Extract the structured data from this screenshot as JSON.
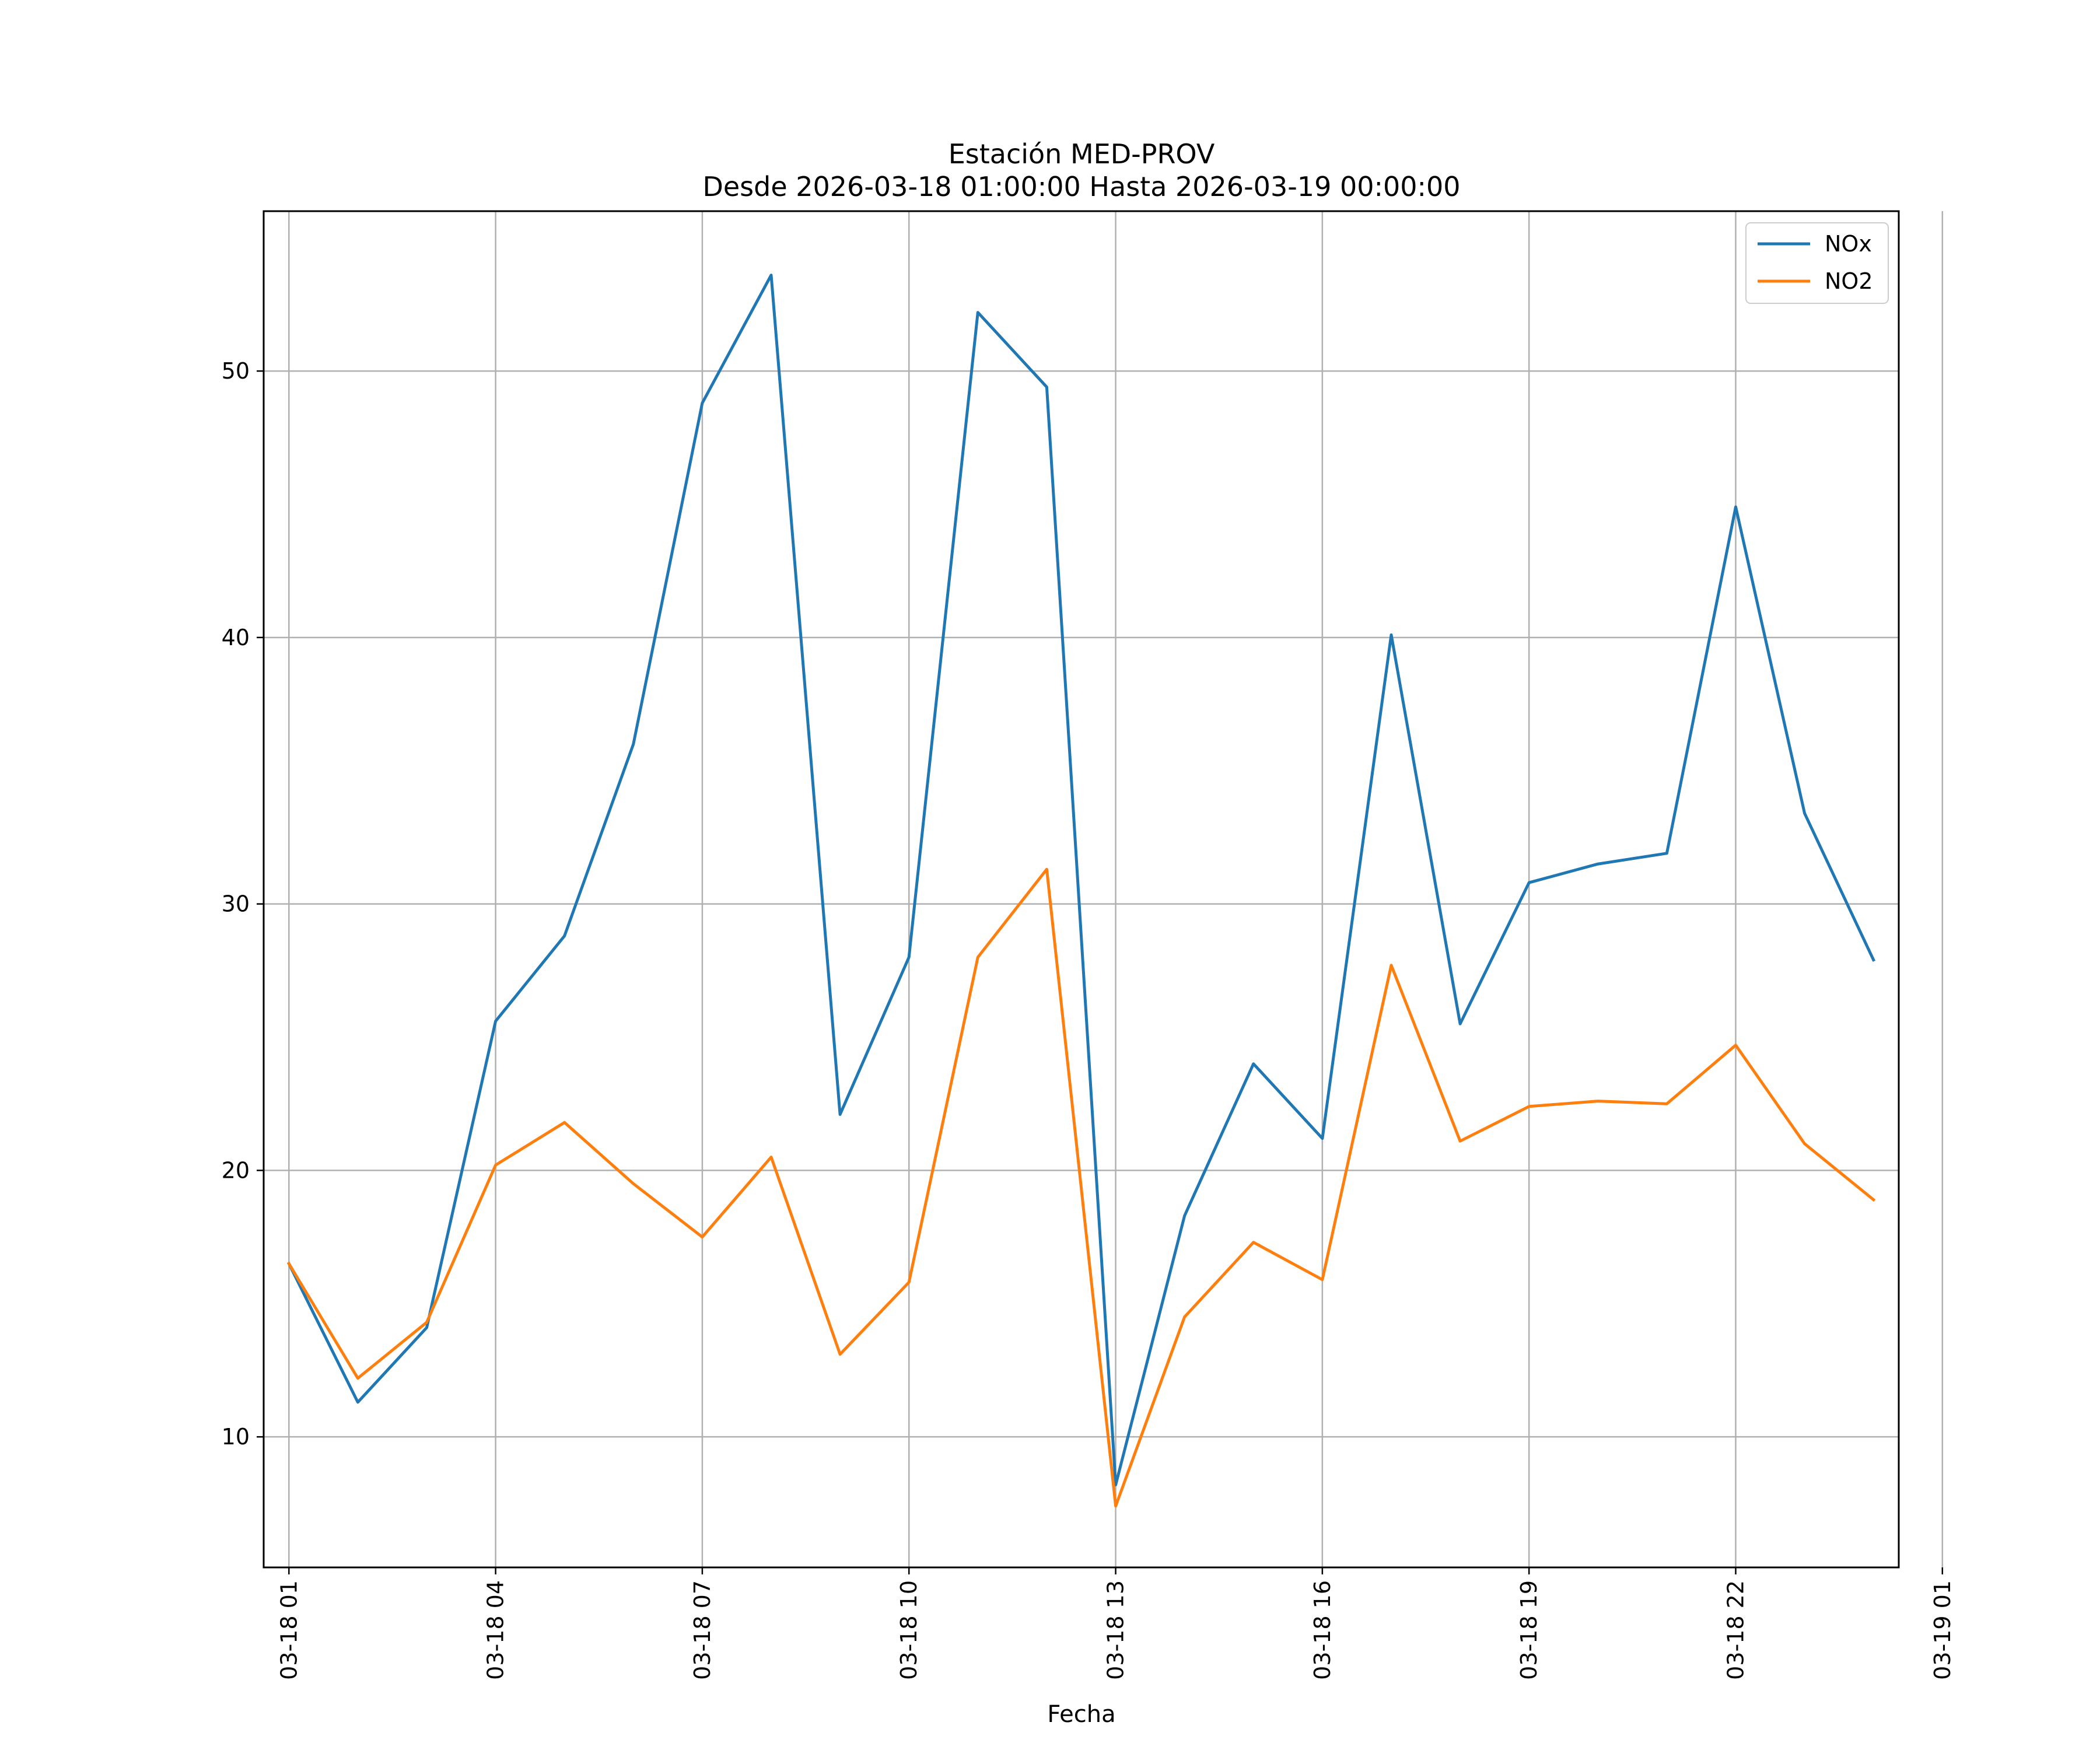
{
  "chart_data": {
    "type": "line",
    "title": "Estación MED-PROV",
    "subtitle": "Desde 2026-03-18 01:00:00 Hasta 2026-03-19 00:00:00",
    "xlabel": "Fecha",
    "ylabel": "",
    "grid": true,
    "legend_position": "top-right",
    "xlim": [
      "2026-03-18 00:38",
      "2026-03-19 00:22"
    ],
    "ylim": [
      5.1,
      56
    ],
    "x": [
      "2026-03-18 01:00",
      "2026-03-18 02:00",
      "2026-03-18 03:00",
      "2026-03-18 04:00",
      "2026-03-18 05:00",
      "2026-03-18 06:00",
      "2026-03-18 07:00",
      "2026-03-18 08:00",
      "2026-03-18 09:00",
      "2026-03-18 10:00",
      "2026-03-18 11:00",
      "2026-03-18 12:00",
      "2026-03-18 13:00",
      "2026-03-18 14:00",
      "2026-03-18 15:00",
      "2026-03-18 16:00",
      "2026-03-18 17:00",
      "2026-03-18 18:00",
      "2026-03-18 19:00",
      "2026-03-18 20:00",
      "2026-03-18 21:00",
      "2026-03-18 22:00",
      "2026-03-18 23:00",
      "2026-03-19 00:00"
    ],
    "x_ticks": [
      {
        "label": "03-18 01",
        "at": "2026-03-18 01:00"
      },
      {
        "label": "03-18 04",
        "at": "2026-03-18 04:00"
      },
      {
        "label": "03-18 07",
        "at": "2026-03-18 07:00"
      },
      {
        "label": "03-18 10",
        "at": "2026-03-18 10:00"
      },
      {
        "label": "03-18 13",
        "at": "2026-03-18 13:00"
      },
      {
        "label": "03-18 16",
        "at": "2026-03-18 16:00"
      },
      {
        "label": "03-18 19",
        "at": "2026-03-18 19:00"
      },
      {
        "label": "03-18 22",
        "at": "2026-03-18 22:00"
      },
      {
        "label": "03-19 01",
        "at": "2026-03-19 01:00"
      }
    ],
    "y_ticks": [
      10,
      20,
      30,
      40,
      50
    ],
    "series": [
      {
        "name": "NOx",
        "color": "#1f77b4",
        "values": [
          16.5,
          11.3,
          14.1,
          25.6,
          28.8,
          36.0,
          48.8,
          53.6,
          22.1,
          28.0,
          52.2,
          49.4,
          8.2,
          18.3,
          24.0,
          21.2,
          40.1,
          25.5,
          30.8,
          31.5,
          31.9,
          44.9,
          33.4,
          27.9
        ]
      },
      {
        "name": "NO2",
        "color": "#ff7f0e",
        "values": [
          16.5,
          12.2,
          14.3,
          20.2,
          21.8,
          19.5,
          17.5,
          20.5,
          13.1,
          15.8,
          28.0,
          31.3,
          7.4,
          14.5,
          17.3,
          15.9,
          27.7,
          21.1,
          22.4,
          22.6,
          22.5,
          24.7,
          21.0,
          18.9
        ]
      }
    ]
  }
}
